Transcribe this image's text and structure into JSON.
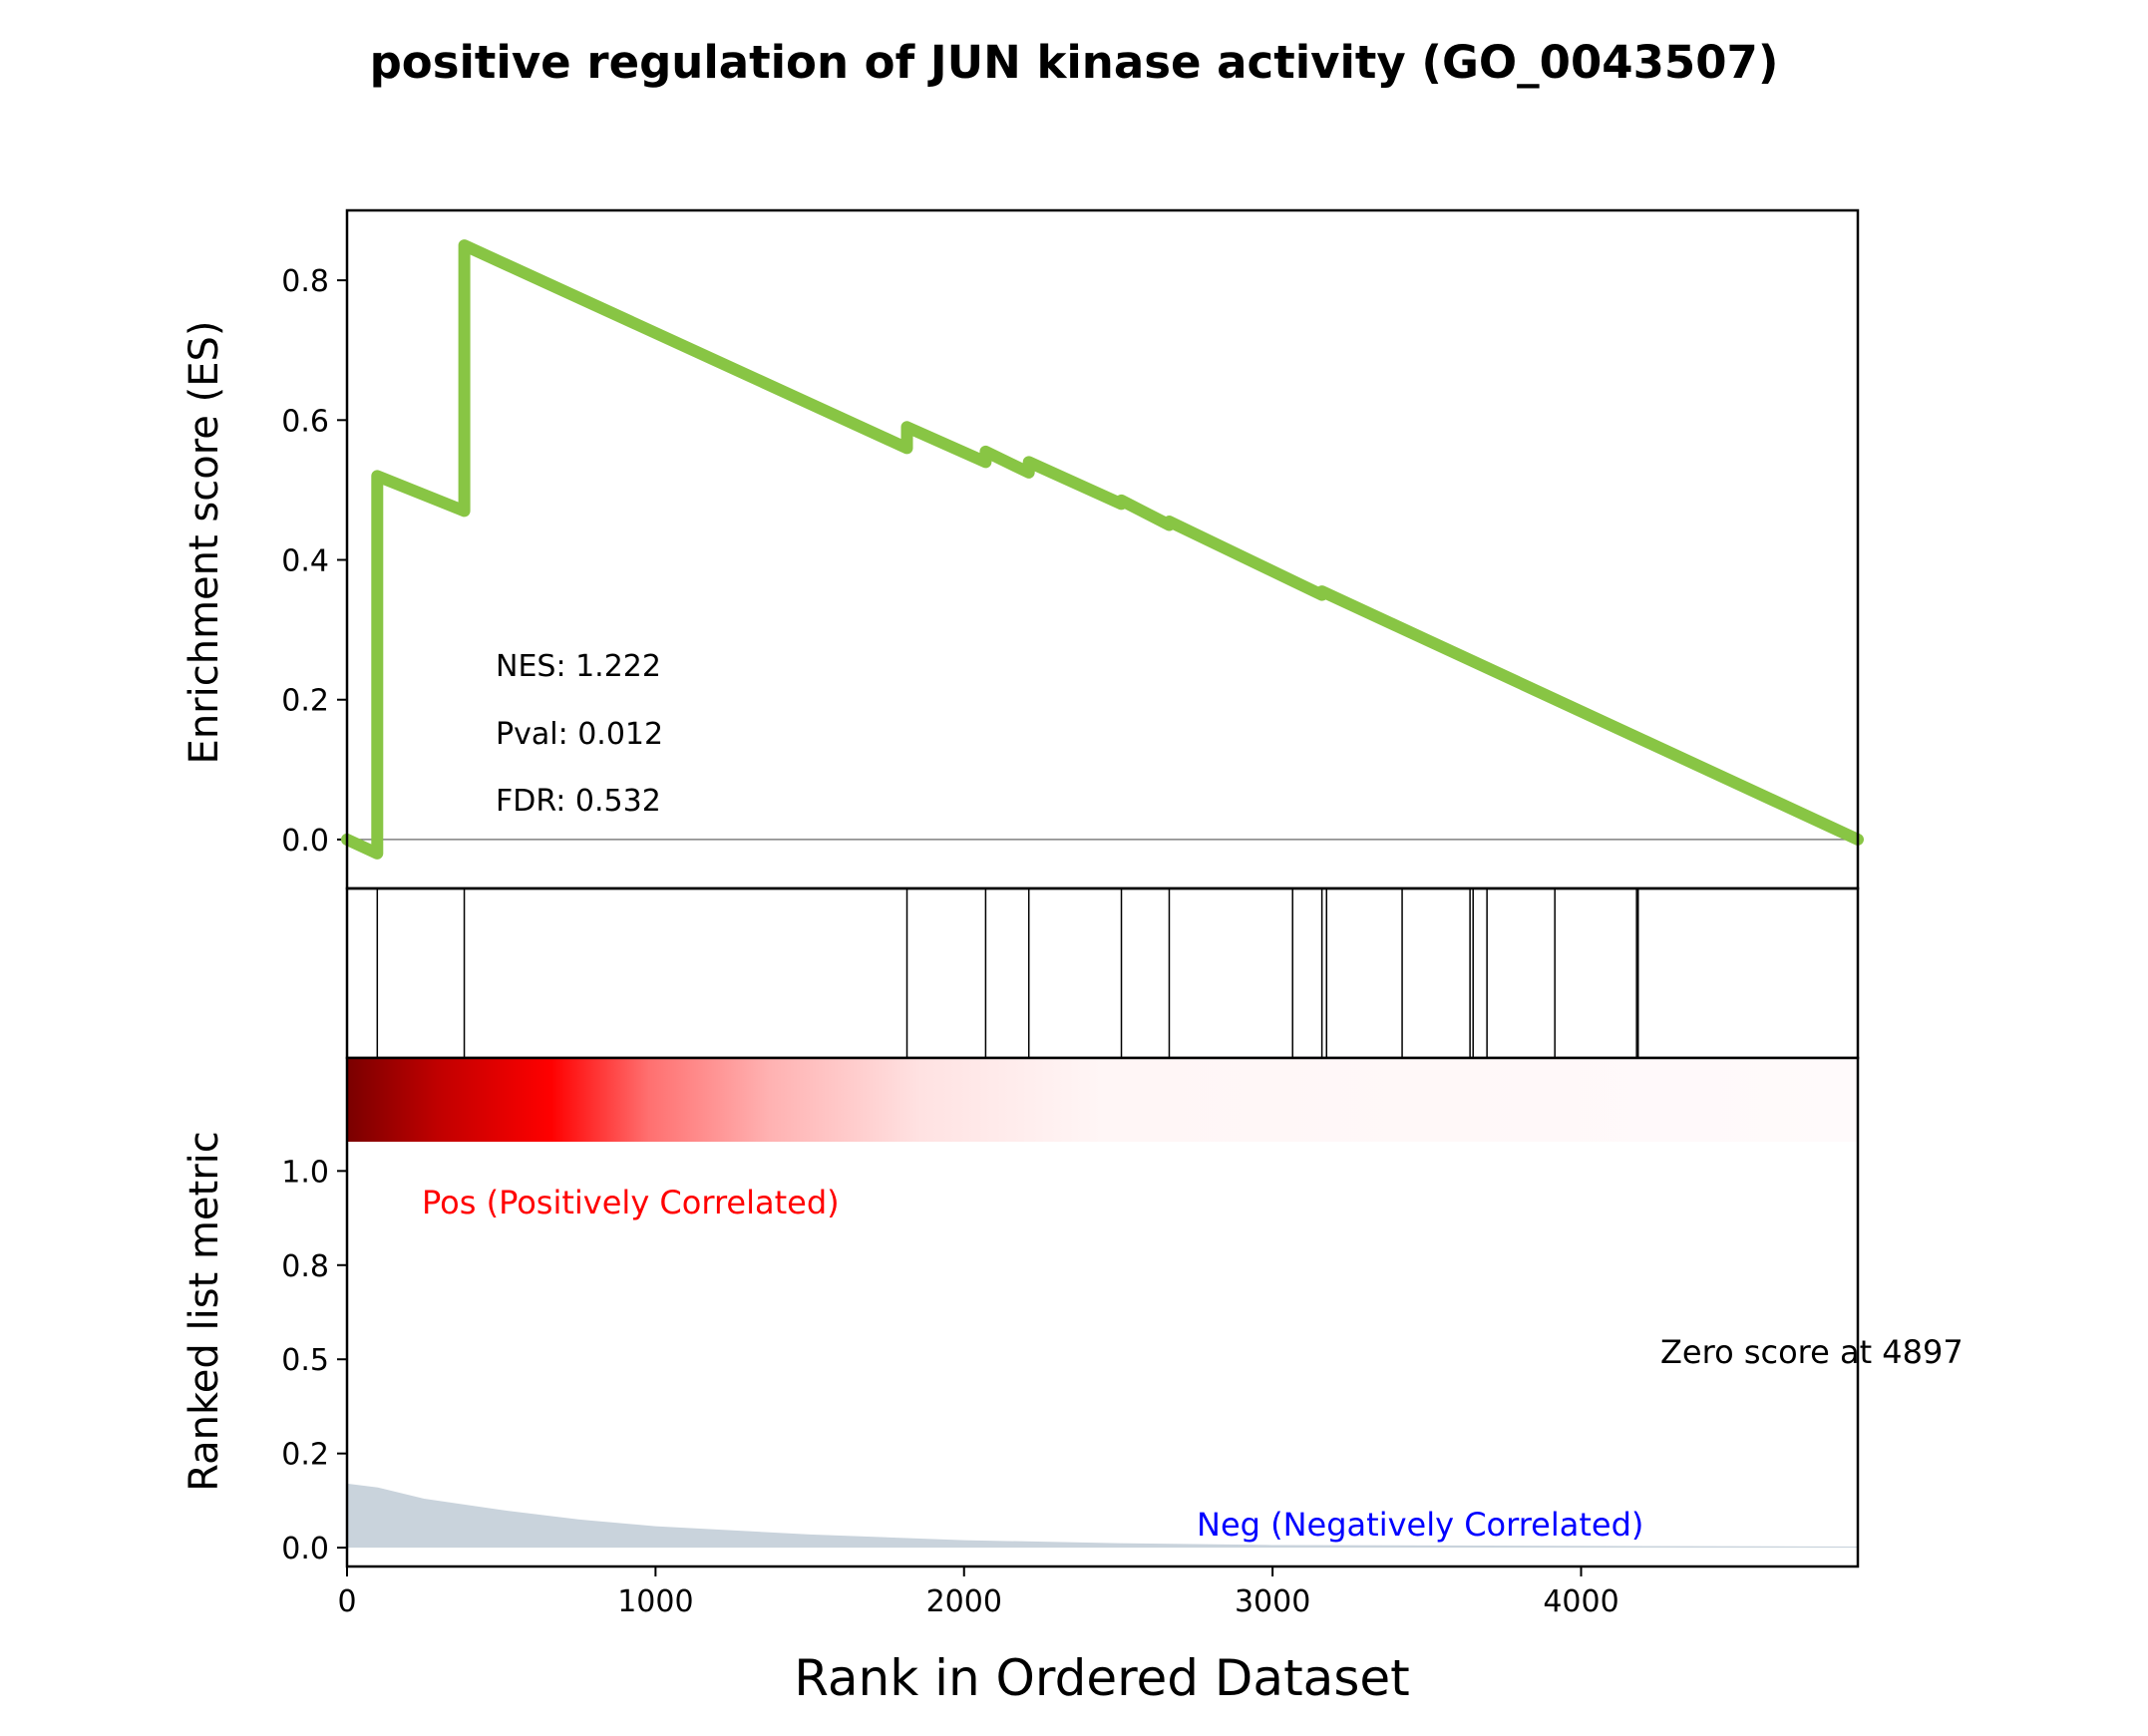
{
  "chart_data": {
    "title": "positive regulation of JUN kinase activity (GO_0043507)",
    "type": "line",
    "x_range": [
      0,
      4897
    ],
    "colors": {
      "es_line": "#88c544",
      "neg_label": "#0000ff",
      "pos_label": "#ff0000",
      "metric_fill": "#c9d3dc"
    },
    "es_panel": {
      "ylabel": "Enrichment score (ES)",
      "ylim": [
        -0.07,
        0.9
      ],
      "yticks": [
        0.0,
        0.2,
        0.4,
        0.6,
        0.8
      ],
      "ytick_labels": [
        "0.0",
        "0.2",
        "0.4",
        "0.6",
        "0.8"
      ],
      "series": [
        {
          "x": [
            0,
            98,
            98,
            380,
            380,
            1815,
            1815,
            2070,
            2070,
            2210,
            2210,
            2510,
            2510,
            2665,
            2665,
            3065,
            3065,
            3160,
            3160,
            4897
          ],
          "y": [
            0.0,
            -0.02,
            0.52,
            0.47,
            0.85,
            0.56,
            0.59,
            0.54,
            0.555,
            0.525,
            0.54,
            0.48,
            0.485,
            0.45,
            0.455,
            0.37,
            0.37,
            0.35,
            0.355,
            0.0
          ]
        }
      ],
      "stats": {
        "nes": "NES: 1.222",
        "pval": "Pval: 0.012",
        "fdr": "FDR: 0.532"
      }
    },
    "hits": [
      98,
      380,
      1815,
      2070,
      2210,
      2510,
      2665,
      3065,
      3160,
      3175,
      3420,
      3640,
      3650,
      3695,
      3915,
      4180,
      4185
    ],
    "rank_panel": {
      "ylabel": "Ranked list metric",
      "ylim": [
        -0.05,
        1.3
      ],
      "yticks": [
        0.0,
        0.25,
        0.5,
        0.75,
        1.0
      ],
      "ytick_labels": [
        "0.0",
        "0.2",
        "0.5",
        "0.8",
        "1.0"
      ],
      "metric_x": [
        0,
        100,
        250,
        500,
        750,
        1000,
        1500,
        2000,
        2500,
        3000,
        4897
      ],
      "metric_y": [
        0.17,
        0.16,
        0.13,
        0.1,
        0.075,
        0.057,
        0.035,
        0.02,
        0.012,
        0.007,
        0.003
      ],
      "pos_label": "Pos (Positively Correlated)",
      "neg_label": "Neg (Negatively Correlated)",
      "zero_label": "Zero score at 4897"
    },
    "xticks": [
      0,
      1000,
      2000,
      3000,
      4000
    ],
    "xtick_labels": [
      "0",
      "1000",
      "2000",
      "3000",
      "4000"
    ],
    "xlabel": "Rank in Ordered Dataset"
  }
}
